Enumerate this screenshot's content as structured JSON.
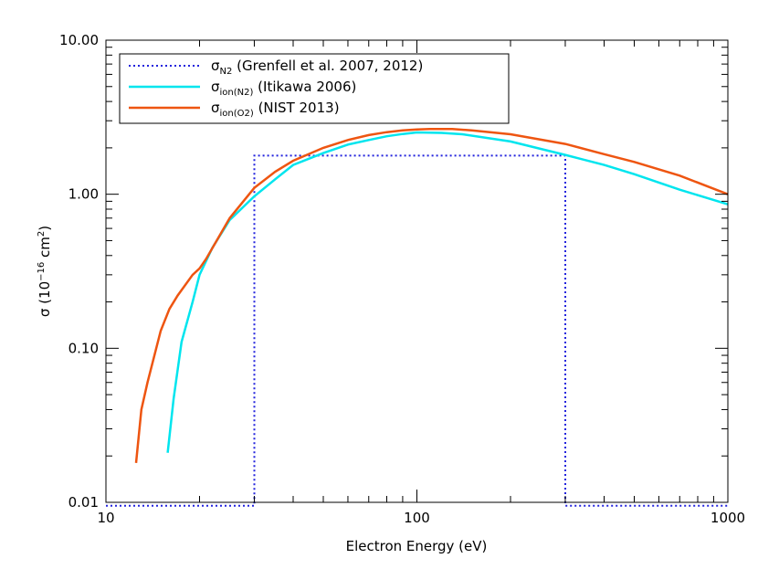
{
  "chart_data": {
    "type": "line",
    "title": "",
    "xlabel": "Electron Energy (eV)",
    "ylabel": {
      "base": "σ (10",
      "exp": "−16",
      "mid": " cm",
      "exp2": "2",
      "end": ")"
    },
    "xscale": "log",
    "yscale": "log",
    "xlim": [
      10,
      1000
    ],
    "ylim": [
      0.01,
      10
    ],
    "xticks": [
      {
        "value": 10,
        "label": "10"
      },
      {
        "value": 100,
        "label": "100"
      },
      {
        "value": 1000,
        "label": "1000"
      }
    ],
    "yticks": [
      {
        "value": 0.01,
        "label": "0.01"
      },
      {
        "value": 0.1,
        "label": "0.10"
      },
      {
        "value": 1,
        "label": "1.00"
      },
      {
        "value": 10,
        "label": "10.00"
      }
    ],
    "legend_position": "top-left",
    "series": [
      {
        "name": {
          "sym": "σ",
          "sub": "N2",
          "desc": " (Grenfell et al. 2007, 2012)"
        },
        "color": "#2222dd",
        "style": "dotted",
        "points": [
          [
            10,
            0.0095
          ],
          [
            30,
            0.0095
          ],
          [
            30,
            1.78
          ],
          [
            300,
            1.78
          ],
          [
            300,
            0.0095
          ],
          [
            1000,
            0.0095
          ]
        ]
      },
      {
        "name": {
          "sym": "σ",
          "sub": "ion(N2)",
          "desc": " (Itikawa 2006)"
        },
        "color": "#00e5ee",
        "style": "solid",
        "points": [
          [
            15.8,
            0.021
          ],
          [
            16.5,
            0.047
          ],
          [
            17.5,
            0.11
          ],
          [
            19,
            0.2
          ],
          [
            20,
            0.3
          ],
          [
            22,
            0.45
          ],
          [
            25,
            0.68
          ],
          [
            30,
            0.97
          ],
          [
            35,
            1.25
          ],
          [
            40,
            1.55
          ],
          [
            50,
            1.85
          ],
          [
            60,
            2.1
          ],
          [
            70,
            2.25
          ],
          [
            80,
            2.38
          ],
          [
            90,
            2.46
          ],
          [
            100,
            2.52
          ],
          [
            120,
            2.5
          ],
          [
            140,
            2.45
          ],
          [
            200,
            2.2
          ],
          [
            300,
            1.8
          ],
          [
            400,
            1.55
          ],
          [
            500,
            1.35
          ],
          [
            700,
            1.07
          ],
          [
            1000,
            0.86
          ]
        ]
      },
      {
        "name": {
          "sym": "σ",
          "sub": "ion(O2)",
          "desc": " (NIST 2013)"
        },
        "color": "#ee5511",
        "style": "solid",
        "points": [
          [
            12.5,
            0.018
          ],
          [
            13,
            0.04
          ],
          [
            13.6,
            0.06
          ],
          [
            15,
            0.13
          ],
          [
            16,
            0.18
          ],
          [
            17,
            0.22
          ],
          [
            19,
            0.3
          ],
          [
            20,
            0.33
          ],
          [
            21,
            0.38
          ],
          [
            25,
            0.7
          ],
          [
            30,
            1.1
          ],
          [
            35,
            1.4
          ],
          [
            40,
            1.65
          ],
          [
            50,
            2.0
          ],
          [
            60,
            2.25
          ],
          [
            70,
            2.42
          ],
          [
            80,
            2.53
          ],
          [
            90,
            2.6
          ],
          [
            100,
            2.63
          ],
          [
            110,
            2.65
          ],
          [
            130,
            2.65
          ],
          [
            150,
            2.6
          ],
          [
            200,
            2.45
          ],
          [
            300,
            2.12
          ],
          [
            400,
            1.82
          ],
          [
            500,
            1.62
          ],
          [
            700,
            1.32
          ],
          [
            1000,
            1.0
          ]
        ]
      }
    ]
  }
}
